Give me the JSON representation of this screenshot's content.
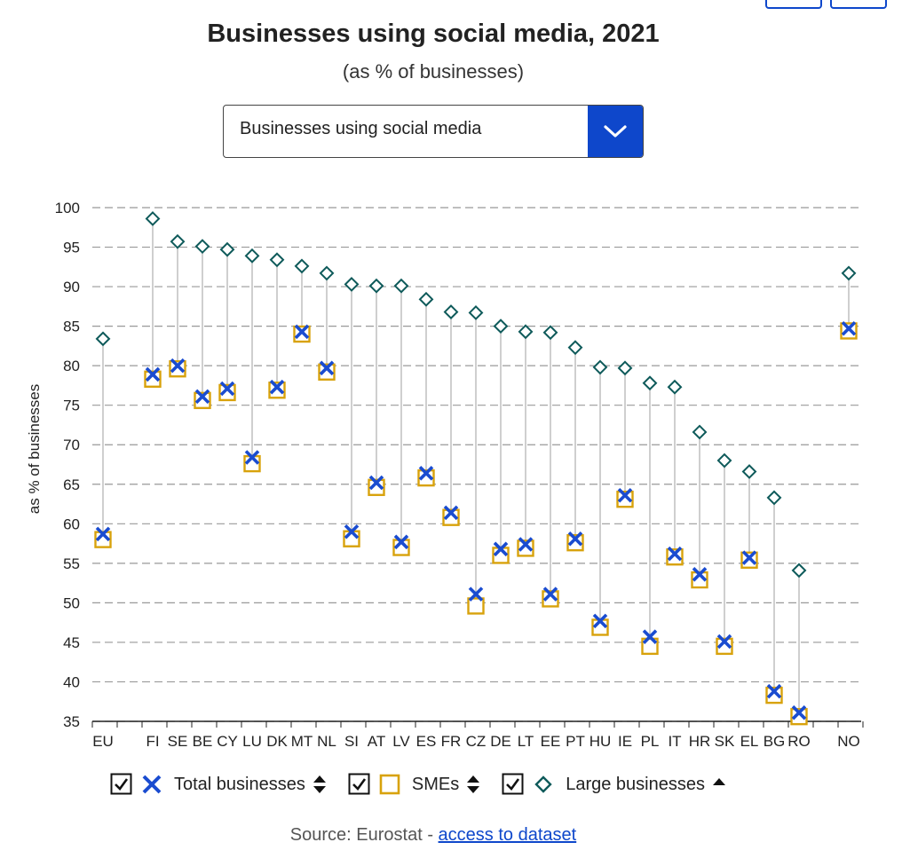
{
  "colors": {
    "accent": "#0e47cb",
    "total": "#1a4cd0",
    "sme": "#d8a20c",
    "large": "#0e5a5a",
    "grid": "#999999",
    "connector": "#b5b5b5"
  },
  "dropdown": {
    "selected": "Businesses using social media",
    "icon": "chevron-down-icon"
  },
  "legend": {
    "total_label": "Total businesses",
    "sme_label": "SMEs",
    "large_label": "Large businesses"
  },
  "source": {
    "prefix": "Source: Eurostat - ",
    "link_text": "access to dataset"
  },
  "chart_data": {
    "type": "scatter",
    "title": "Businesses using social media, 2021",
    "subtitle": "(as % of businesses)",
    "xlabel": "",
    "ylabel": "as % of businesses",
    "ylim": [
      35,
      100
    ],
    "yticks": [
      35,
      40,
      45,
      50,
      55,
      60,
      65,
      70,
      75,
      80,
      85,
      90,
      95,
      100
    ],
    "grid": true,
    "categories": [
      "EU",
      "",
      "FI",
      "SE",
      "BE",
      "CY",
      "LU",
      "DK",
      "MT",
      "NL",
      "SI",
      "AT",
      "LV",
      "ES",
      "FR",
      "CZ",
      "DE",
      "LT",
      "EE",
      "PT",
      "HU",
      "IE",
      "PL",
      "IT",
      "HR",
      "SK",
      "EL",
      "BG",
      "RO",
      "",
      "NO"
    ],
    "series": [
      {
        "name": "Total businesses",
        "marker": "x",
        "values": [
          58.7,
          null,
          78.9,
          80.0,
          76.1,
          77.1,
          68.4,
          77.3,
          84.3,
          79.7,
          59.0,
          65.2,
          57.7,
          66.4,
          61.4,
          51.1,
          56.8,
          57.4,
          51.1,
          58.1,
          47.7,
          63.6,
          45.7,
          56.2,
          53.6,
          45.1,
          55.7,
          38.8,
          36.1,
          null,
          84.7
        ]
      },
      {
        "name": "SMEs",
        "marker": "square",
        "values": [
          58.0,
          null,
          78.3,
          79.6,
          75.6,
          76.6,
          67.6,
          76.9,
          84.0,
          79.2,
          58.1,
          64.6,
          57.0,
          65.8,
          60.8,
          49.6,
          56.0,
          56.9,
          50.5,
          57.6,
          46.9,
          63.1,
          44.5,
          55.8,
          52.9,
          44.5,
          55.4,
          38.3,
          35.6,
          null,
          84.4
        ]
      },
      {
        "name": "Large businesses",
        "marker": "diamond",
        "values": [
          83.4,
          null,
          98.6,
          95.7,
          95.1,
          94.7,
          93.9,
          93.4,
          92.6,
          91.7,
          90.3,
          90.1,
          90.1,
          88.4,
          86.8,
          86.7,
          85.0,
          84.3,
          84.2,
          82.3,
          79.8,
          79.7,
          77.8,
          77.3,
          71.6,
          68.0,
          66.6,
          63.3,
          54.1,
          null,
          91.7
        ]
      }
    ]
  }
}
